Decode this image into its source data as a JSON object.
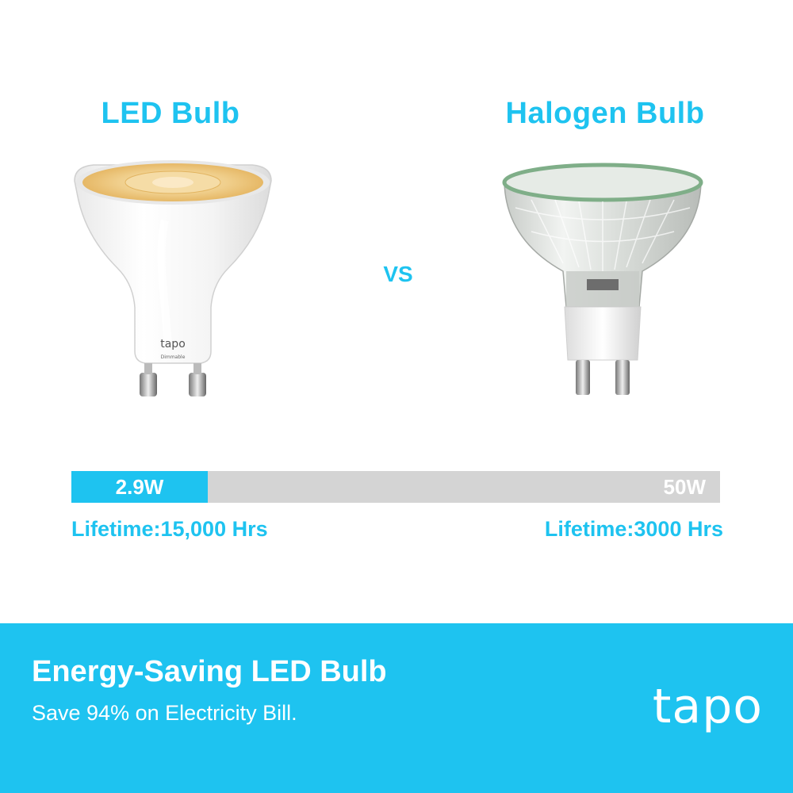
{
  "comparison": {
    "led_title": "LED Bulb",
    "halogen_title": "Halogen Bulb",
    "vs_label": "VS",
    "led_brand": "tapo",
    "led_brand_sub": "Dimmable"
  },
  "power_bar": {
    "led_label": "2.9W",
    "halogen_label": "50W",
    "led_watts": 2.9,
    "halogen_watts": 50,
    "led_fill_fraction": 0.21,
    "led_color": "#1ec3f0",
    "track_color": "#d4d4d4"
  },
  "lifetime": {
    "led": "Lifetime:15,000 Hrs",
    "halogen": "Lifetime:3000 Hrs"
  },
  "footer": {
    "headline": "Energy-Saving LED Bulb",
    "subtext": "Save 94% on Electricity Bill.",
    "logo": "tapo",
    "background": "#1ec3f0"
  }
}
